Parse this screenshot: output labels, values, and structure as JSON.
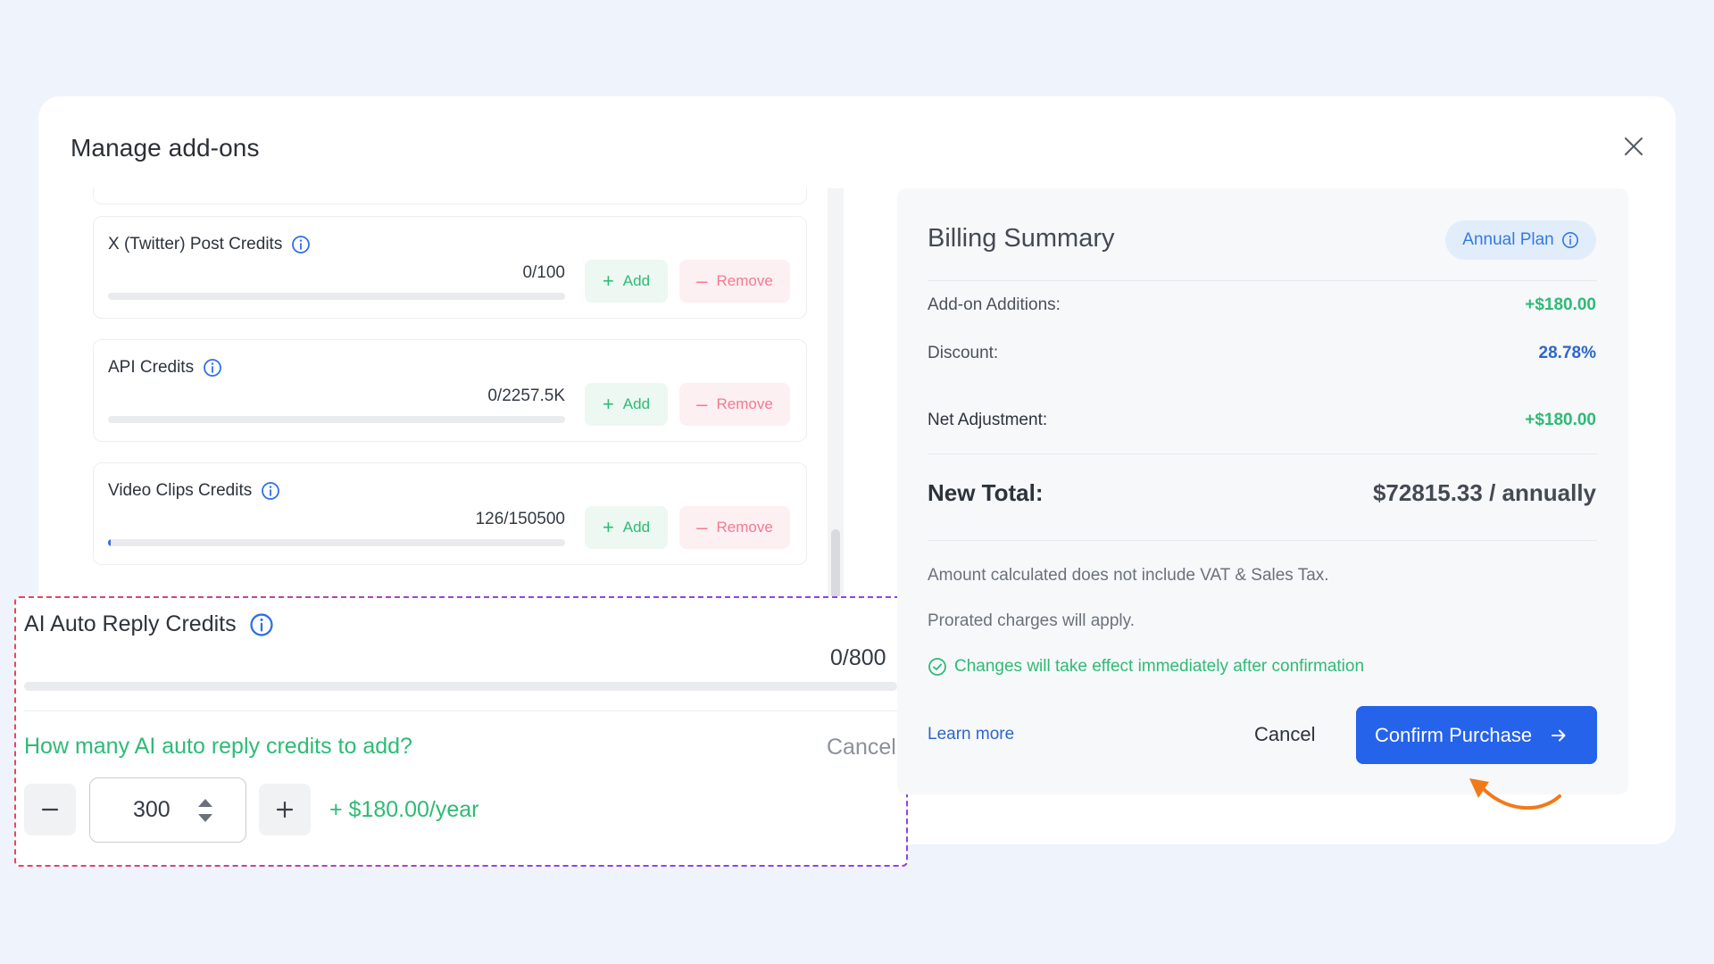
{
  "modal": {
    "title": "Manage add-ons"
  },
  "addons": [
    {
      "name": "X (Twitter) Post Credits",
      "count": "0/100",
      "usage_fraction": 0.0,
      "add_label": "Add",
      "remove_label": "Remove"
    },
    {
      "name": "API Credits",
      "count": "0/2257.5K",
      "usage_fraction": 0.0,
      "add_label": "Add",
      "remove_label": "Remove"
    },
    {
      "name": "Video Clips Credits",
      "count": "126/150500",
      "usage_fraction": 0.0008,
      "add_label": "Add",
      "remove_label": "Remove"
    }
  ],
  "highlight": {
    "name": "AI Auto Reply Credits",
    "count": "0/800",
    "question": "How many AI auto reply credits to add?",
    "cancel_label": "Cancel",
    "quantity": "300",
    "price": "+ $180.00/year"
  },
  "billing": {
    "title": "Billing Summary",
    "plan_badge": "Annual Plan",
    "addon_additions_label": "Add-on Additions:",
    "addon_additions_value": "+$180.00",
    "discount_label": "Discount:",
    "discount_value": "28.78%",
    "net_adjustment_label": "Net Adjustment:",
    "net_adjustment_value": "+$180.00",
    "new_total_label": "New Total:",
    "new_total_value": "$72815.33 / annually",
    "note_vat": "Amount calculated does not include VAT & Sales Tax.",
    "note_prorated": "Prorated charges will apply.",
    "effect_note": "Changes will take effect immediately after confirmation",
    "learn_more": "Learn more",
    "cancel_label": "Cancel",
    "confirm_label": "Confirm Purchase"
  },
  "colors": {
    "accent_blue": "#2563eb",
    "green": "#2dbb75",
    "remove_red": "#f27a90",
    "highlight_red": "#e6475f",
    "highlight_purple": "#8b45e8",
    "annotation_orange": "#f07a1a"
  }
}
